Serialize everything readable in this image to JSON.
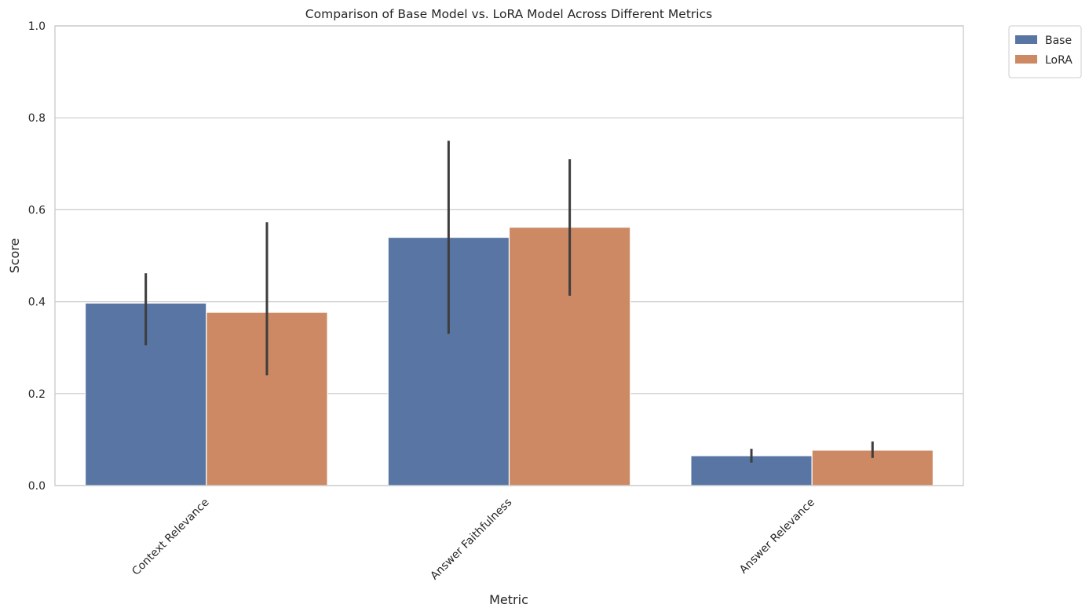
{
  "chart_data": {
    "type": "bar",
    "title": "Comparison of Base Model vs. LoRA Model Across Different Metrics",
    "xlabel": "Metric",
    "ylabel": "Score",
    "ylim": [
      0,
      1.0
    ],
    "yticks": [
      "0.0",
      "0.2",
      "0.4",
      "0.6",
      "0.8",
      "1.0"
    ],
    "categories": [
      "Context Relevance",
      "Answer Faithfulness",
      "Answer Relevance"
    ],
    "series": [
      {
        "name": "Base",
        "color": "#5875a4",
        "values": [
          0.397,
          0.54,
          0.065
        ],
        "err_low": [
          0.305,
          0.33,
          0.05
        ],
        "err_high": [
          0.462,
          0.75,
          0.08
        ]
      },
      {
        "name": "LoRA",
        "color": "#cc8963",
        "values": [
          0.377,
          0.562,
          0.077
        ],
        "err_low": [
          0.24,
          0.413,
          0.06
        ],
        "err_high": [
          0.573,
          0.71,
          0.096
        ]
      }
    ],
    "grid": "horizontal",
    "legend_position": "outside-top-right"
  }
}
